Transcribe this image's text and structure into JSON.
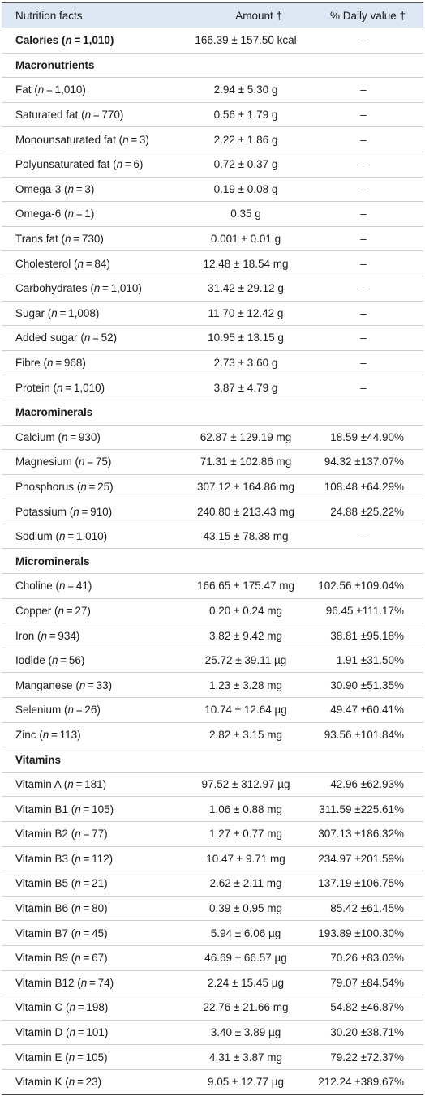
{
  "header": {
    "col_nutrient": "Nutrition facts",
    "col_amount": "Amount †",
    "col_daily": "% Daily value †"
  },
  "rows": [
    {
      "type": "item",
      "bold": true,
      "name": "Calories",
      "n": "1,010",
      "amount": "166.39 ± 157.50 kcal",
      "daily": "–"
    },
    {
      "type": "section",
      "name": "Macronutrients"
    },
    {
      "type": "item",
      "name": "Fat",
      "n": "1,010",
      "amount": "2.94 ± 5.30 g",
      "daily": "–"
    },
    {
      "type": "item",
      "name": "Saturated fat",
      "n": "770",
      "amount": "0.56 ± 1.79 g",
      "daily": "–"
    },
    {
      "type": "item",
      "name": "Monounsaturated fat",
      "n": "3",
      "amount": "2.22 ± 1.86 g",
      "daily": "–"
    },
    {
      "type": "item",
      "name": "Polyunsaturated fat",
      "n": "6",
      "amount": "0.72 ± 0.37 g",
      "daily": "–"
    },
    {
      "type": "item",
      "name": "Omega-3",
      "n": "3",
      "amount": "0.19 ± 0.08 g",
      "daily": "–"
    },
    {
      "type": "item",
      "name": "Omega-6",
      "n": "1",
      "amount": "0.35 g",
      "daily": "–"
    },
    {
      "type": "item",
      "name": "Trans fat",
      "n": "730",
      "amount": "0.001 ± 0.01 g",
      "daily": "–"
    },
    {
      "type": "item",
      "name": "Cholesterol",
      "n": "84",
      "amount": "12.48 ± 18.54 mg",
      "daily": "–"
    },
    {
      "type": "item",
      "name": "Carbohydrates",
      "n": "1,010",
      "amount": "31.42 ± 29.12 g",
      "daily": "–"
    },
    {
      "type": "item",
      "name": "Sugar",
      "n": "1,008",
      "amount": "11.70 ± 12.42 g",
      "daily": "–"
    },
    {
      "type": "item",
      "name": "Added sugar",
      "n": "52",
      "amount": "10.95 ± 13.15 g",
      "daily": "–"
    },
    {
      "type": "item",
      "name": "Fibre",
      "n": "968",
      "amount": "2.73 ± 3.60 g",
      "daily": "–"
    },
    {
      "type": "item",
      "name": "Protein",
      "n": "1,010",
      "amount": "3.87 ± 4.79 g",
      "daily": "–"
    },
    {
      "type": "section",
      "name": "Macrominerals"
    },
    {
      "type": "item",
      "name": "Calcium",
      "n": "930",
      "amount": "62.87 ± 129.19 mg",
      "daily": "18.59 ±44.90%"
    },
    {
      "type": "item",
      "name": "Magnesium",
      "n": "75",
      "amount": "71.31 ± 102.86 mg",
      "daily": "94.32 ±137.07%"
    },
    {
      "type": "item",
      "name": "Phosphorus",
      "n": "25",
      "amount": "307.12 ± 164.86 mg",
      "daily": "108.48 ±64.29%"
    },
    {
      "type": "item",
      "name": "Potassium",
      "n": "910",
      "amount": "240.80 ± 213.43 mg",
      "daily": "24.88 ±25.22%"
    },
    {
      "type": "item",
      "name": "Sodium",
      "n": "1,010",
      "amount": "43.15 ± 78.38 mg",
      "daily": "–"
    },
    {
      "type": "section",
      "name": "Microminerals"
    },
    {
      "type": "item",
      "name": "Choline",
      "n": "41",
      "amount": "166.65 ± 175.47 mg",
      "daily": "102.56 ±109.04%"
    },
    {
      "type": "item",
      "name": "Copper",
      "n": "27",
      "amount": "0.20 ± 0.24 mg",
      "daily": "96.45 ±111.17%"
    },
    {
      "type": "item",
      "name": "Iron",
      "n": "934",
      "amount": "3.82 ± 9.42 mg",
      "daily": "38.81 ±95.18%"
    },
    {
      "type": "item",
      "name": "Iodide",
      "n": "56",
      "amount": "25.72 ± 39.11 µg",
      "daily": "1.91 ±31.50%"
    },
    {
      "type": "item",
      "name": "Manganese",
      "n": "33",
      "amount": "1.23 ± 3.28 mg",
      "daily": "30.90 ±51.35%"
    },
    {
      "type": "item",
      "name": "Selenium",
      "n": "26",
      "amount": "10.74 ± 12.64 µg",
      "daily": "49.47 ±60.41%"
    },
    {
      "type": "item",
      "name": "Zinc",
      "n": "113",
      "amount": "2.82 ± 3.15 mg",
      "daily": "93.56 ±101.84%"
    },
    {
      "type": "section",
      "name": "Vitamins"
    },
    {
      "type": "item",
      "name": "Vitamin A",
      "n": "181",
      "amount": "97.52 ± 312.97 µg",
      "daily": "42.96 ±62.93%"
    },
    {
      "type": "item",
      "name": "Vitamin B1",
      "n": "105",
      "amount": "1.06 ± 0.88 mg",
      "daily": "311.59 ±225.61%"
    },
    {
      "type": "item",
      "name": "Vitamin B2",
      "n": "77",
      "amount": "1.27 ± 0.77 mg",
      "daily": "307.13 ±186.32%"
    },
    {
      "type": "item",
      "name": "Vitamin B3",
      "n": "112",
      "amount": "10.47 ± 9.71 mg",
      "daily": "234.97 ±201.59%"
    },
    {
      "type": "item",
      "name": "Vitamin B5",
      "n": "21",
      "amount": "2.62 ± 2.11 mg",
      "daily": "137.19 ±106.75%"
    },
    {
      "type": "item",
      "name": "Vitamin B6",
      "n": "80",
      "amount": "0.39 ± 0.95 mg",
      "daily": "85.42 ±61.45%"
    },
    {
      "type": "item",
      "name": "Vitamin B7",
      "n": "45",
      "amount": "5.94 ± 6.06 µg",
      "daily": "193.89 ±100.30%"
    },
    {
      "type": "item",
      "name": "Vitamin B9",
      "n": "67",
      "amount": "46.69 ± 66.57 µg",
      "daily": "70.26 ±83.03%"
    },
    {
      "type": "item",
      "name": "Vitamin B12",
      "n": "74",
      "amount": "2.24 ± 15.45 µg",
      "daily": "79.07 ±84.54%"
    },
    {
      "type": "item",
      "name": "Vitamin C",
      "n": "198",
      "amount": "22.76 ± 21.66 mg",
      "daily": "54.82 ±46.87%"
    },
    {
      "type": "item",
      "name": "Vitamin D",
      "n": "101",
      "amount": "3.40 ± 3.89 µg",
      "daily": "30.20 ±38.71%"
    },
    {
      "type": "item",
      "name": "Vitamin E",
      "n": "105",
      "amount": "4.31 ± 3.87 mg",
      "daily": "79.22 ±72.37%"
    },
    {
      "type": "item",
      "name": "Vitamin K",
      "n": "23",
      "amount": "9.05 ± 12.77 µg",
      "daily": "212.24 ±389.67%"
    }
  ]
}
